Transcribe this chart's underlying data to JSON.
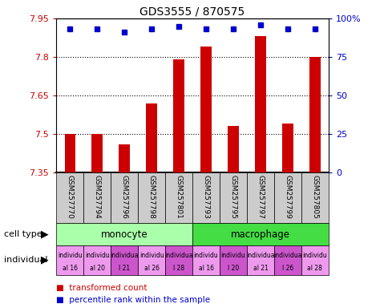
{
  "title": "GDS3555 / 870575",
  "samples": [
    "GSM257770",
    "GSM257794",
    "GSM257796",
    "GSM257798",
    "GSM257801",
    "GSM257793",
    "GSM257795",
    "GSM257797",
    "GSM257799",
    "GSM257805"
  ],
  "transformed_counts": [
    7.5,
    7.5,
    7.46,
    7.62,
    7.79,
    7.84,
    7.53,
    7.88,
    7.54,
    7.8
  ],
  "percentile_ranks": [
    93,
    93,
    91,
    93,
    95,
    93,
    93,
    96,
    93,
    93
  ],
  "ylim": [
    7.35,
    7.95
  ],
  "yticks": [
    7.35,
    7.5,
    7.65,
    7.8,
    7.95
  ],
  "y2lim": [
    0,
    100
  ],
  "y2ticks": [
    0,
    25,
    50,
    75,
    100
  ],
  "y2ticklabels": [
    "0",
    "25",
    "50",
    "75",
    "100%"
  ],
  "bar_color": "#cc0000",
  "dot_color": "#0000cc",
  "cell_types": [
    {
      "label": "monocyte",
      "start": 0,
      "end": 5,
      "color": "#aaffaa"
    },
    {
      "label": "macrophage",
      "start": 5,
      "end": 10,
      "color": "#44dd44"
    }
  ],
  "ind_colors": [
    "#ee99ee",
    "#ee99ee",
    "#cc55cc",
    "#ee99ee",
    "#cc55cc",
    "#ee99ee",
    "#cc55cc",
    "#ee99ee",
    "#cc55cc",
    "#ee99ee"
  ],
  "ind_line1": [
    "individu",
    "individu",
    "individua",
    "individu",
    "individua",
    "individu",
    "individu",
    "individua",
    "individua",
    "individu"
  ],
  "ind_line2": [
    "al 16",
    "al 20",
    "l 21",
    "al 26",
    "l 28",
    "al 16",
    "l 20",
    "al 21",
    "l 26",
    "al 28"
  ],
  "legend_items": [
    {
      "label": "transformed count",
      "color": "#cc0000"
    },
    {
      "label": "percentile rank within the sample",
      "color": "#0000cc"
    }
  ],
  "xlabel_cell_type": "cell type",
  "xlabel_individual": "individual",
  "left_label_color": "#cc0000",
  "right_label_color": "#0000cc",
  "sample_bg": "#cccccc",
  "bar_width": 0.4
}
